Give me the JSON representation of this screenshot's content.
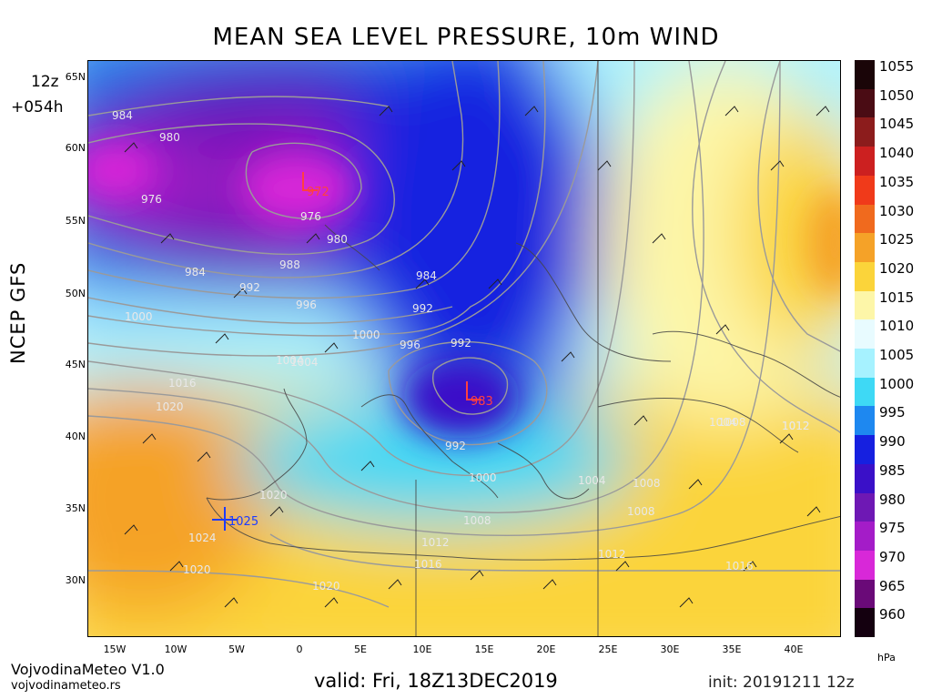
{
  "header": {
    "title": "MEAN SEA LEVEL PRESSURE, 10m WIND",
    "run_hour": "12z",
    "forecast_step": "+054h",
    "model": "NCEP GFS"
  },
  "footer": {
    "brand": "VojvodinaMeteo V1.0",
    "site": "vojvodinameteo.rs",
    "valid": "valid: Fri, 18Z13DEC2019",
    "init": "init: 20191211 12z"
  },
  "map": {
    "lat_labels": [
      "65N",
      "60N",
      "55N",
      "50N",
      "45N",
      "40N",
      "35N",
      "30N"
    ],
    "lon_labels": [
      "15W",
      "10W",
      "5W",
      "0",
      "5E",
      "10E",
      "15E",
      "20E",
      "25E",
      "30E",
      "35E",
      "40E"
    ],
    "centers": [
      {
        "type": "L",
        "value": "972",
        "color": "#ff4040"
      },
      {
        "type": "L",
        "value": "983",
        "color": "#ff4040"
      },
      {
        "type": "H",
        "value": "1025",
        "color": "#1e3cff"
      }
    ],
    "isobar_labels": [
      "984",
      "980",
      "976",
      "976",
      "980",
      "984",
      "988",
      "984",
      "992",
      "996",
      "992",
      "1000",
      "1000",
      "996",
      "992",
      "1004",
      "1016",
      "1020",
      "992",
      "1000",
      "1004",
      "1008",
      "1008",
      "1004",
      "1008",
      "1012",
      "1020",
      "1024",
      "1020",
      "1020",
      "1012",
      "1016",
      "1012",
      "1016",
      "1008",
      "1012",
      "1004"
    ]
  },
  "legend": {
    "unit": "hPa",
    "levels": [
      "1055",
      "1050",
      "1045",
      "1040",
      "1035",
      "1030",
      "1025",
      "1020",
      "1015",
      "1010",
      "1005",
      "1000",
      "995",
      "990",
      "985",
      "980",
      "975",
      "970",
      "965",
      "960"
    ],
    "colors": [
      "#1a0508",
      "#4a0c14",
      "#8c1c1c",
      "#cc2020",
      "#f03a1a",
      "#f06a1e",
      "#f5a228",
      "#fbd43a",
      "#fdf6a8",
      "#e8fbff",
      "#a6f2ff",
      "#3ed9f5",
      "#1e88f0",
      "#1620e0",
      "#3a10c8",
      "#6e18b4",
      "#a41cc8",
      "#d828d8",
      "#6a0a78",
      "#14000f"
    ]
  }
}
